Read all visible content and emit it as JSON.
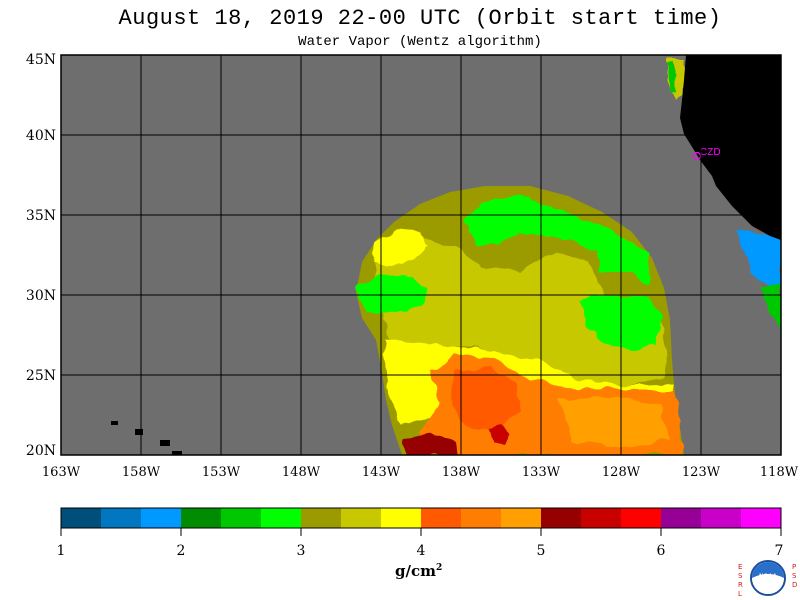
{
  "header": {
    "title": "August 18, 2019  22-00 UTC  (Orbit start time)",
    "subtitle": "Water Vapor (Wentz algorithm)"
  },
  "map": {
    "latitude_labels": [
      "45N",
      "40N",
      "35N",
      "30N",
      "25N",
      "20N"
    ],
    "longitude_labels": [
      "163W",
      "158W",
      "153W",
      "148W",
      "143W",
      "138W",
      "133W",
      "128W",
      "123W",
      "118W"
    ],
    "station_label": "CZD",
    "colors": {
      "no_data": "#6e6e6e",
      "land": "#000000",
      "grid": "#000000",
      "station": "#ff00ff"
    }
  },
  "colorbar": {
    "tick_labels": [
      "1",
      "2",
      "3",
      "4",
      "5",
      "6",
      "7"
    ],
    "units_label": "g/cm",
    "units_exponent": "2",
    "colors": [
      "#004f7a",
      "#0077c0",
      "#0099ff",
      "#008c00",
      "#00c800",
      "#00ff00",
      "#9b9b00",
      "#c8c800",
      "#ffff00",
      "#ff5a00",
      "#ff7d00",
      "#ffa000",
      "#960000",
      "#c80000",
      "#ff0000",
      "#960096",
      "#c800c8",
      "#ff00ff"
    ]
  },
  "logo": {
    "left_letters": [
      "E",
      "S",
      "R",
      "L"
    ],
    "right_letters": [
      "P",
      "S",
      "D"
    ],
    "name": "NOAA"
  }
}
